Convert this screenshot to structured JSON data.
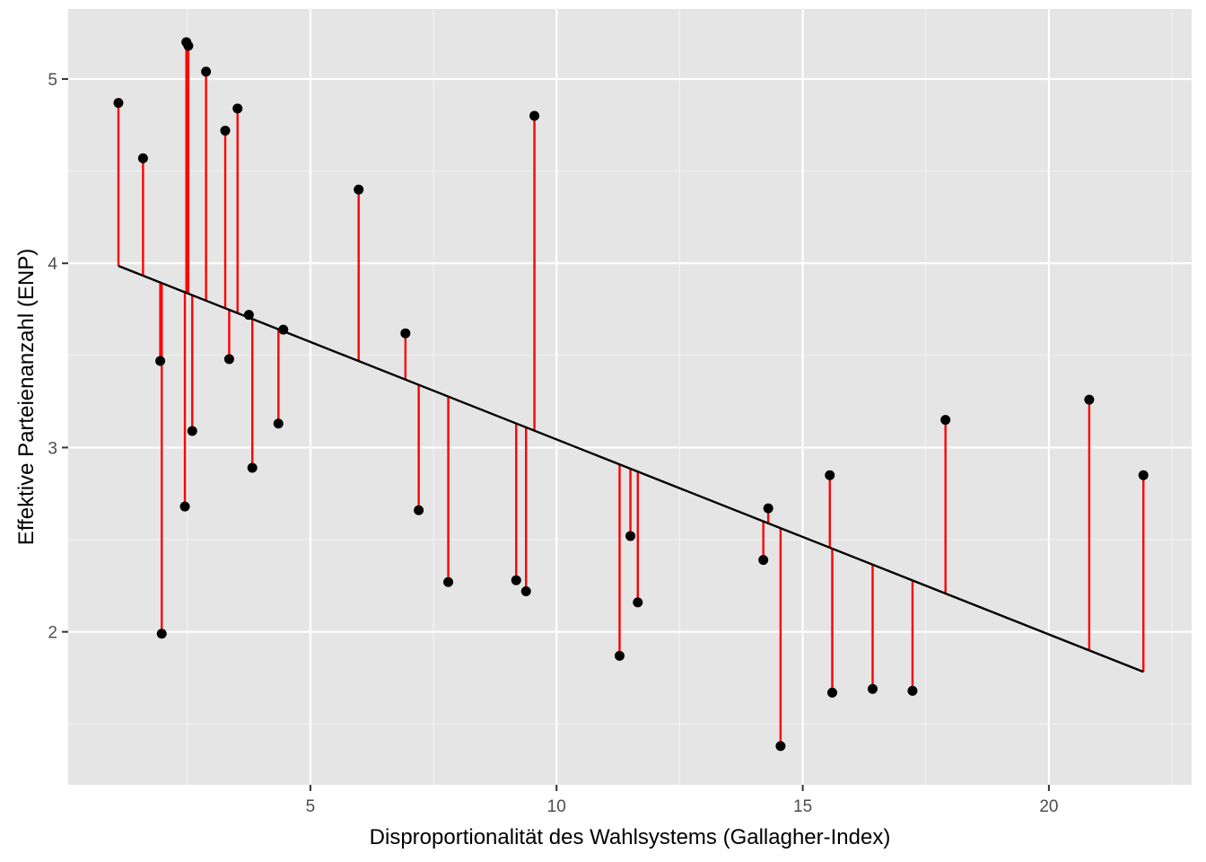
{
  "chart_data": {
    "type": "scatter",
    "title": "",
    "xlabel": "Disproportionalität des Wahlsystems (Gallagher-Index)",
    "ylabel": "Effektive Parteienanzahl (ENP)",
    "xlim": [
      0.08,
      22.9
    ],
    "ylim": [
      1.17,
      5.38
    ],
    "x_ticks": [
      5,
      10,
      15,
      20
    ],
    "x_tick_labels": [
      "5",
      "10",
      "15",
      "20"
    ],
    "y_ticks": [
      2,
      3,
      4,
      5
    ],
    "y_tick_labels": [
      "2",
      "3",
      "4",
      "5"
    ],
    "grid": true,
    "legend": "none",
    "regression_line": {
      "intercept": 4.102,
      "slope": -0.1058
    },
    "points": [
      {
        "x": 1.1,
        "y": 4.87
      },
      {
        "x": 1.6,
        "y": 4.57
      },
      {
        "x": 1.95,
        "y": 3.47
      },
      {
        "x": 1.98,
        "y": 1.99
      },
      {
        "x": 2.45,
        "y": 2.68
      },
      {
        "x": 2.48,
        "y": 5.2
      },
      {
        "x": 2.52,
        "y": 5.18
      },
      {
        "x": 2.6,
        "y": 3.09
      },
      {
        "x": 2.88,
        "y": 5.04
      },
      {
        "x": 3.27,
        "y": 4.72
      },
      {
        "x": 3.35,
        "y": 3.48
      },
      {
        "x": 3.52,
        "y": 4.84
      },
      {
        "x": 3.75,
        "y": 3.72
      },
      {
        "x": 3.82,
        "y": 2.89
      },
      {
        "x": 4.35,
        "y": 3.13
      },
      {
        "x": 4.45,
        "y": 3.64
      },
      {
        "x": 5.98,
        "y": 4.4
      },
      {
        "x": 6.93,
        "y": 3.62
      },
      {
        "x": 7.2,
        "y": 2.66
      },
      {
        "x": 7.8,
        "y": 2.27
      },
      {
        "x": 9.18,
        "y": 2.28
      },
      {
        "x": 9.38,
        "y": 2.22
      },
      {
        "x": 9.55,
        "y": 4.8
      },
      {
        "x": 11.28,
        "y": 1.87
      },
      {
        "x": 11.5,
        "y": 2.52
      },
      {
        "x": 11.65,
        "y": 2.16
      },
      {
        "x": 14.2,
        "y": 2.39
      },
      {
        "x": 14.3,
        "y": 2.67
      },
      {
        "x": 14.55,
        "y": 1.38
      },
      {
        "x": 15.55,
        "y": 2.85
      },
      {
        "x": 15.6,
        "y": 1.67
      },
      {
        "x": 16.42,
        "y": 1.69
      },
      {
        "x": 17.23,
        "y": 1.68
      },
      {
        "x": 17.9,
        "y": 3.15
      },
      {
        "x": 20.82,
        "y": 3.26
      },
      {
        "x": 21.92,
        "y": 2.85
      }
    ],
    "colors": {
      "panel": "#e5e5e5",
      "grid": "#ffffff",
      "residual": "#ff0000",
      "point": "#000000",
      "fit": "#000000"
    }
  }
}
